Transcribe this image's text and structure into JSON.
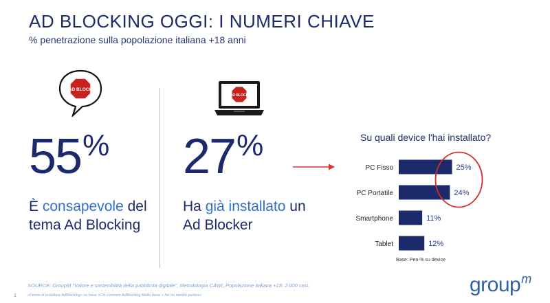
{
  "header": {
    "title": "AD BLOCKING OGGI: I NUMERI CHIAVE",
    "subtitle": "% penetrazione sulla popolazione italiana +18 anni"
  },
  "stat_left": {
    "value": "55",
    "percent": "%",
    "caption_prefix": "È ",
    "caption_highlight": "consapevole",
    "caption_suffix": " del tema Ad Blocking",
    "icon_label": "AD BLOCK"
  },
  "stat_right": {
    "value": "27",
    "percent": "%",
    "caption_prefix": "Ha ",
    "caption_highlight": "già installato",
    "caption_suffix": " un Ad Blocker",
    "icon_label": "AD BLOCK"
  },
  "chart_data": {
    "type": "bar",
    "orientation": "horizontal",
    "title": "Su quali device l'hai installato?",
    "categories": [
      "PC Fisso",
      "PC Portatile",
      "Smartphone",
      "Tablet"
    ],
    "values": [
      25,
      24,
      11,
      12
    ],
    "value_labels": [
      "25%",
      "24%",
      "11%",
      "12%"
    ],
    "unit": "%",
    "base_note": "Base: Pen % su device",
    "bar_color": "#1c2a6b",
    "highlight_circle_color": "#d42a2a",
    "highlighted_categories": [
      "PC Fisso",
      "PC Portatile"
    ]
  },
  "footer": {
    "source": "SOURCE: GroupM \"Valore e sostenibilità della pubblicità digitale\", Metodologia CAWI, Popolazione italiana +18: 2.000 casi.",
    "note": "«Pensa di installare AdBlocking» su base «Chi conosce AdBlocking Molto bene + Ne ho sentito parlare»",
    "page_number": "1",
    "logo_text": "group",
    "logo_mark": "m"
  },
  "colors": {
    "navy": "#1c2a6b",
    "accent_blue": "#2f6fcf",
    "arrow_red": "#e0312b"
  }
}
